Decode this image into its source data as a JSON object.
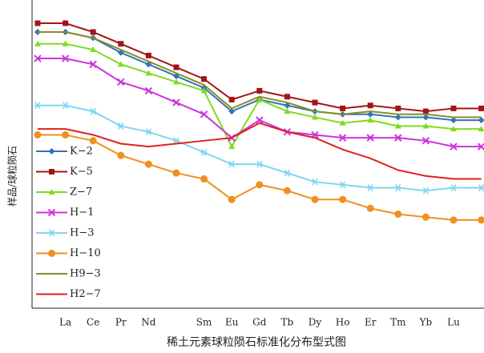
{
  "chart_data": {
    "type": "line",
    "x_label": "稀土元素球粒陨石标准化分布型式图",
    "y_label": "样品/球粒陨石",
    "categories": [
      null,
      "La",
      "Ce",
      "Pr",
      "Nd",
      null,
      "Sm",
      "Eu",
      "Gd",
      "Tb",
      "Dy",
      "Ho",
      "Er",
      "Tm",
      "Yb",
      "Lu",
      null
    ],
    "ylim": [
      0,
      100
    ],
    "series": [
      {
        "name": "K−2",
        "color": "#2e75b6",
        "marker": "diamond",
        "values": [
          94,
          94,
          92,
          87,
          83,
          79,
          75,
          67,
          71,
          69,
          67,
          66,
          66,
          65,
          65,
          64,
          64
        ]
      },
      {
        "name": "K−5",
        "color": "#a31515",
        "marker": "square",
        "values": [
          97,
          97,
          94,
          90,
          86,
          82,
          78,
          71,
          74,
          72,
          70,
          68,
          69,
          68,
          67,
          68,
          68
        ]
      },
      {
        "name": "Z−7",
        "color": "#7fdc1e",
        "marker": "triangle",
        "values": [
          90,
          90,
          88,
          83,
          80,
          77,
          74,
          55,
          71,
          67,
          65,
          63,
          64,
          62,
          62,
          61,
          61
        ]
      },
      {
        "name": "H−1",
        "color": "#cc33dd",
        "marker": "x",
        "values": [
          85,
          85,
          83,
          77,
          74,
          70,
          66,
          58,
          64,
          60,
          59,
          58,
          58,
          58,
          57,
          55,
          55
        ]
      },
      {
        "name": "H−3",
        "color": "#7fd6f0",
        "marker": "star",
        "values": [
          69,
          69,
          67,
          62,
          60,
          57,
          53,
          49,
          49,
          46,
          43,
          42,
          41,
          41,
          40,
          41,
          41
        ]
      },
      {
        "name": "H−10",
        "color": "#f0901e",
        "marker": "circle",
        "values": [
          59,
          59,
          57,
          52,
          49,
          46,
          44,
          37,
          42,
          40,
          37,
          37,
          34,
          32,
          31,
          30,
          30
        ]
      },
      {
        "name": "H9−3",
        "color": "#8b8b2a",
        "marker": "none",
        "values": [
          94,
          94,
          92,
          88,
          84,
          80,
          76,
          68,
          72,
          70,
          67,
          66,
          67,
          66,
          66,
          65,
          65
        ]
      },
      {
        "name": "H2−7",
        "color": "#e02020",
        "marker": "none",
        "values": [
          61,
          61,
          59,
          56,
          55,
          56,
          57,
          58,
          63,
          60,
          58,
          54,
          51,
          47,
          45,
          44,
          44
        ]
      }
    ]
  }
}
